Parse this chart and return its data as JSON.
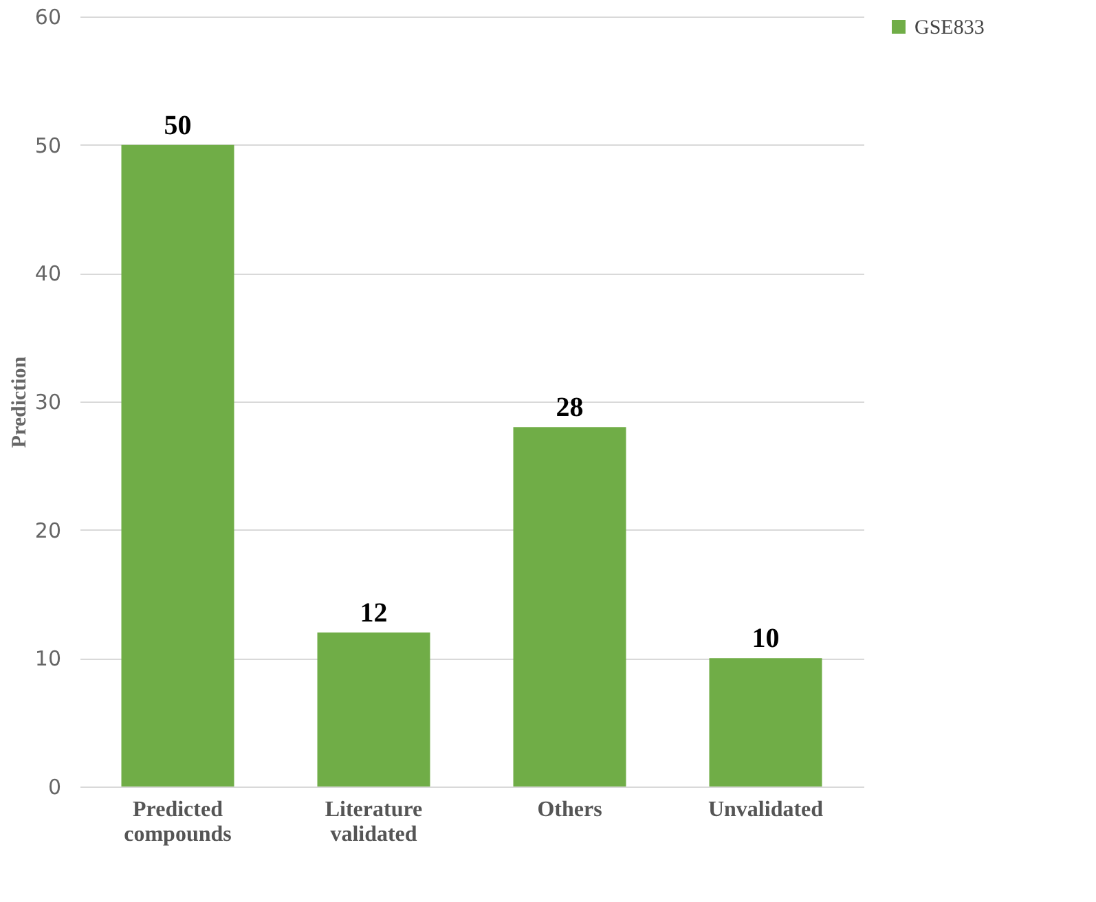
{
  "chart_data": {
    "type": "bar",
    "ylabel": "Prediction",
    "categories": [
      "Predicted compounds",
      "Literature validated",
      "Others",
      "Unvalidated"
    ],
    "series": [
      {
        "name": "GSE833",
        "color": "#70ad47",
        "values": [
          50,
          12,
          28,
          10
        ]
      }
    ],
    "ylim": [
      0,
      60
    ],
    "yticks": [
      0,
      10,
      20,
      30,
      40,
      50,
      60
    ],
    "grid": "y",
    "legend": "right",
    "data_labels": true
  }
}
